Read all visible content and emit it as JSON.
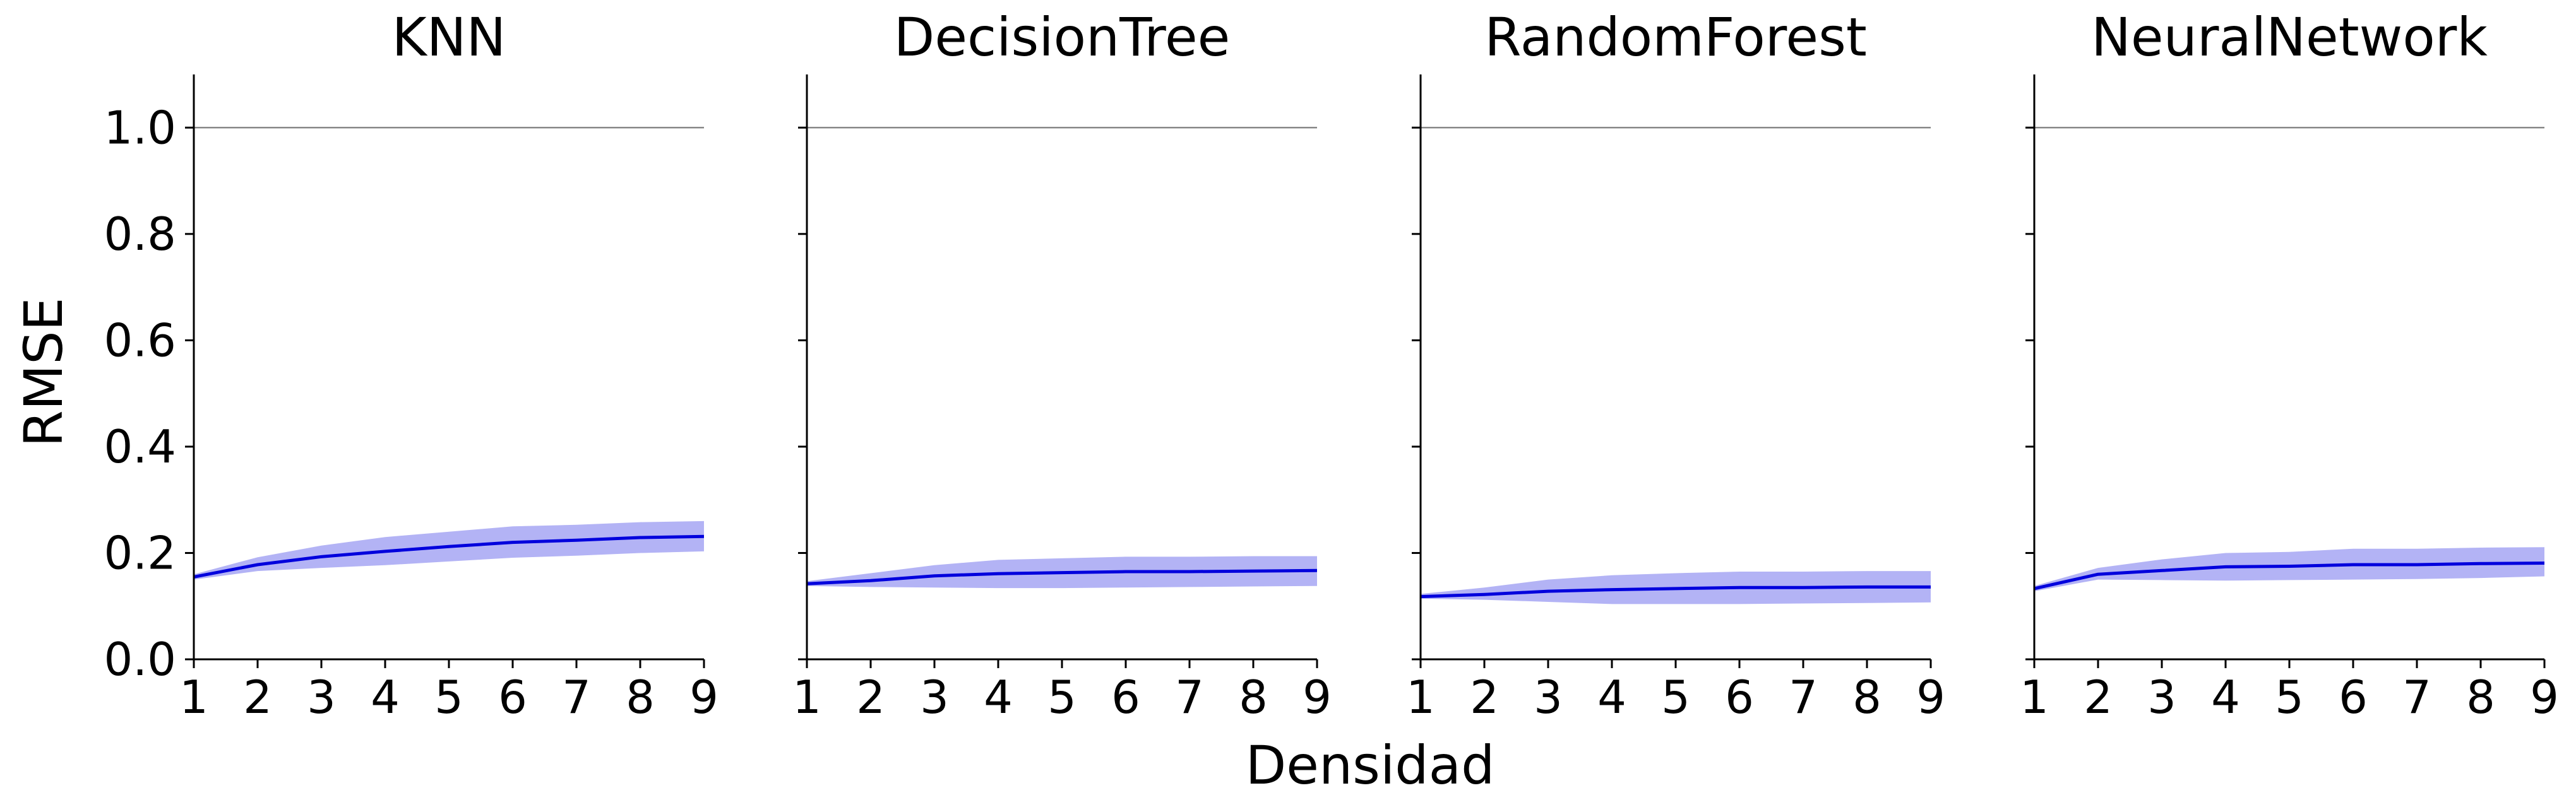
{
  "chart_data": {
    "type": "line",
    "layout": "4 panels side by side, shared y axis",
    "ylabel": "RMSE",
    "xlabel": "Densidad",
    "ylim": [
      0,
      1.1
    ],
    "xlim": [
      1,
      9
    ],
    "yticks": [
      "0.0",
      "0.2",
      "0.4",
      "0.6",
      "0.8",
      "1.0"
    ],
    "xticks": [
      "1",
      "2",
      "3",
      "4",
      "5",
      "6",
      "7",
      "8",
      "9"
    ],
    "reference_line": {
      "y": 1.0,
      "color": "#888888"
    },
    "grid": false,
    "line_color": "#0000dd",
    "band_color": "#b3b3f5",
    "x": [
      1,
      2,
      3,
      4,
      5,
      6,
      7,
      8,
      9
    ],
    "panels": [
      {
        "title": "KNN",
        "mean": [
          0.155,
          0.178,
          0.193,
          0.203,
          0.212,
          0.22,
          0.224,
          0.229,
          0.231
        ],
        "upper": [
          0.16,
          0.192,
          0.214,
          0.23,
          0.24,
          0.25,
          0.253,
          0.258,
          0.26
        ],
        "lower": [
          0.15,
          0.166,
          0.172,
          0.177,
          0.184,
          0.191,
          0.195,
          0.2,
          0.203
        ]
      },
      {
        "title": "DecisionTree",
        "mean": [
          0.142,
          0.148,
          0.157,
          0.161,
          0.163,
          0.165,
          0.165,
          0.166,
          0.167
        ],
        "upper": [
          0.147,
          0.162,
          0.177,
          0.187,
          0.19,
          0.193,
          0.193,
          0.194,
          0.194
        ],
        "lower": [
          0.138,
          0.136,
          0.135,
          0.134,
          0.134,
          0.135,
          0.136,
          0.137,
          0.138
        ]
      },
      {
        "title": "RandomForest",
        "mean": [
          0.118,
          0.122,
          0.128,
          0.131,
          0.133,
          0.135,
          0.135,
          0.136,
          0.136
        ],
        "upper": [
          0.123,
          0.135,
          0.15,
          0.158,
          0.162,
          0.165,
          0.165,
          0.166,
          0.166
        ],
        "lower": [
          0.114,
          0.112,
          0.108,
          0.104,
          0.104,
          0.104,
          0.105,
          0.106,
          0.107
        ]
      },
      {
        "title": "NeuralNetwork",
        "mean": [
          0.133,
          0.16,
          0.167,
          0.174,
          0.175,
          0.178,
          0.178,
          0.18,
          0.181
        ],
        "upper": [
          0.138,
          0.172,
          0.188,
          0.2,
          0.202,
          0.208,
          0.208,
          0.21,
          0.211
        ],
        "lower": [
          0.128,
          0.15,
          0.149,
          0.148,
          0.149,
          0.15,
          0.151,
          0.153,
          0.156
        ]
      }
    ]
  }
}
